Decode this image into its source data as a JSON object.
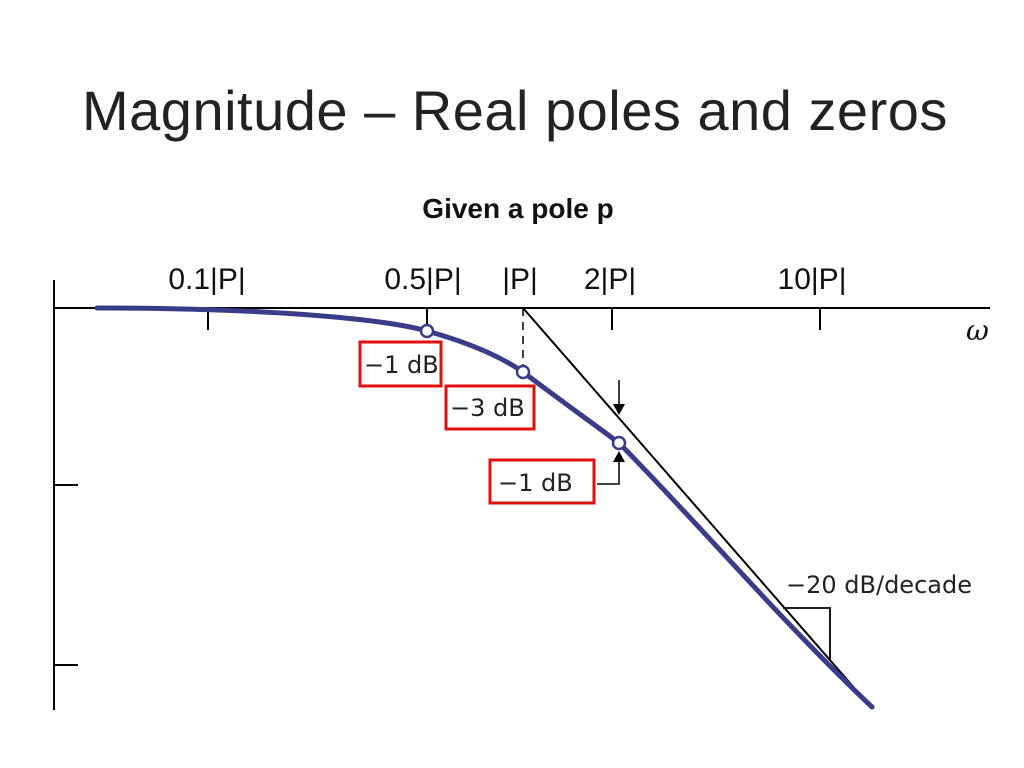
{
  "slide": {
    "title": "Magnitude – Real poles and zeros",
    "subtitle": "Given a pole p"
  },
  "axis": {
    "x_symbol": "ω",
    "tick_labels": [
      "0.1|P|",
      "0.5|P|",
      "|P|",
      "2|P|",
      "10|P|"
    ]
  },
  "annotations": {
    "minus1_left": "−1 dB",
    "minus3": "−3 dB",
    "minus1_right": "−1 dB",
    "slope": "−20 dB/decade"
  },
  "colors": {
    "response_curve": "#3a3c8a",
    "asymptote": "#000000",
    "highlight_box": "#e01010"
  }
}
